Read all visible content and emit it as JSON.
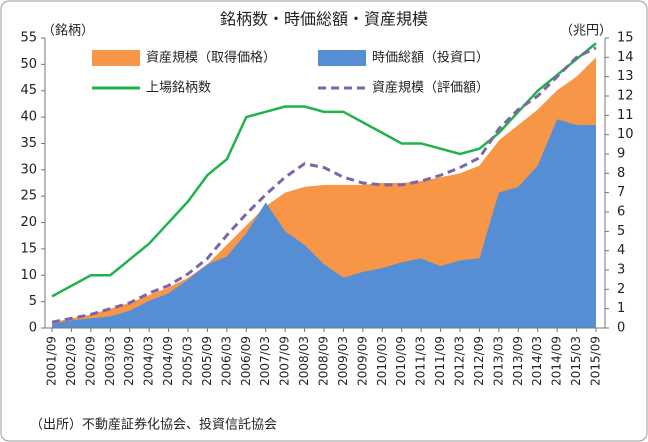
{
  "chart_data": {
    "type": "area-line",
    "title": "銘柄数・時価総額・資産規模",
    "y_label": "（銘柄）",
    "y2_label": "（兆円）",
    "source": "（出所）不動産証券化協会、投資信託協会",
    "categories": [
      "2001/09",
      "2002/03",
      "2002/09",
      "2003/03",
      "2003/09",
      "2004/03",
      "2004/09",
      "2005/03",
      "2005/09",
      "2006/03",
      "2006/09",
      "2007/03",
      "2007/09",
      "2008/03",
      "2008/09",
      "2009/03",
      "2009/09",
      "2010/03",
      "2010/09",
      "2011/03",
      "2011/09",
      "2012/03",
      "2012/09",
      "2013/03",
      "2013/09",
      "2014/03",
      "2014/09",
      "2015/03",
      "2015/09"
    ],
    "ylim": [
      0,
      55
    ],
    "yticks": [
      0,
      5,
      10,
      15,
      20,
      25,
      30,
      35,
      40,
      45,
      50,
      55
    ],
    "y2lim": [
      0,
      15
    ],
    "y2ticks": [
      0,
      1,
      2,
      3,
      4,
      5,
      6,
      7,
      8,
      9,
      10,
      11,
      12,
      13,
      14,
      15
    ],
    "series": [
      {
        "name": "資産規模（取得価格）",
        "kind": "area",
        "axis": "y2",
        "color": "#f79646",
        "values": [
          0.3,
          0.5,
          0.7,
          1.0,
          1.3,
          1.7,
          2.1,
          2.6,
          3.3,
          4.3,
          5.3,
          6.3,
          7.0,
          7.3,
          7.4,
          7.4,
          7.4,
          7.5,
          7.5,
          7.6,
          7.8,
          8.0,
          8.4,
          9.7,
          10.5,
          11.3,
          12.3,
          13.0,
          14.0
        ]
      },
      {
        "name": "時価総額（投資口）",
        "kind": "area",
        "axis": "y2",
        "color": "#558ed5",
        "values": [
          0.2,
          0.4,
          0.5,
          0.6,
          0.9,
          1.4,
          1.8,
          2.5,
          3.3,
          3.7,
          4.9,
          6.5,
          5.0,
          4.3,
          3.3,
          2.6,
          2.9,
          3.1,
          3.4,
          3.6,
          3.2,
          3.5,
          3.6,
          7.0,
          7.3,
          8.4,
          10.8,
          10.5,
          10.5
        ]
      },
      {
        "name": "上場銘柄数",
        "kind": "line",
        "axis": "y",
        "color": "#21b24b",
        "values": [
          6,
          8,
          10,
          10,
          13,
          16,
          20,
          24,
          29,
          32,
          40,
          41,
          42,
          42,
          41,
          41,
          39,
          37,
          35,
          35,
          34,
          33,
          34,
          37,
          41,
          45,
          48,
          51,
          54
        ]
      },
      {
        "name": "資産規模（評価額）",
        "kind": "dashed",
        "axis": "y2",
        "color": "#7f64a8",
        "values": [
          0.3,
          0.5,
          0.7,
          1.0,
          1.3,
          1.8,
          2.2,
          2.8,
          3.6,
          4.8,
          5.9,
          6.9,
          7.8,
          8.5,
          8.3,
          7.8,
          7.5,
          7.4,
          7.4,
          7.6,
          7.9,
          8.3,
          8.8,
          10.3,
          11.3,
          12.0,
          13.0,
          14.0,
          14.5
        ]
      }
    ]
  }
}
